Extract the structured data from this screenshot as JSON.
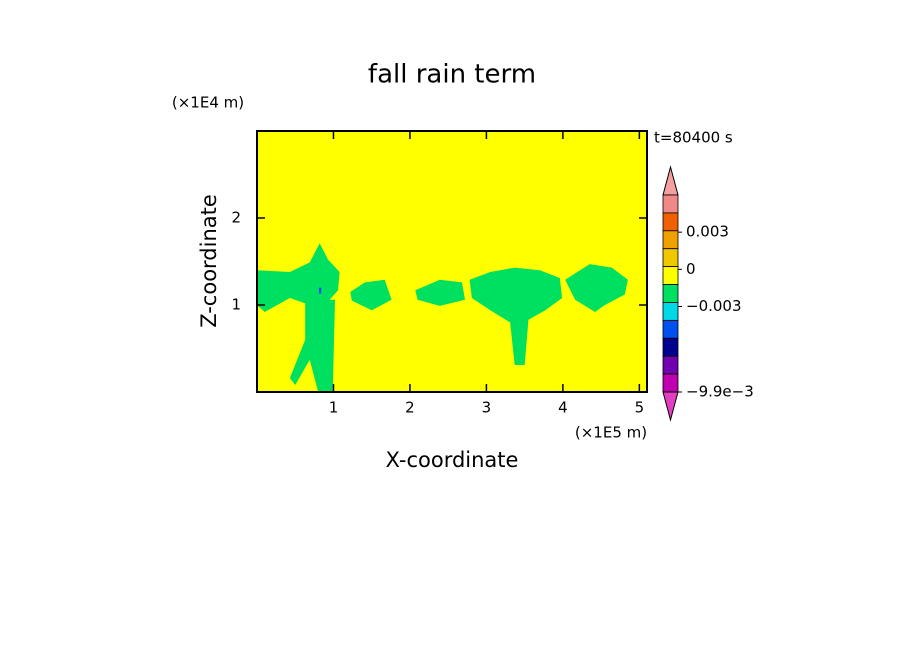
{
  "chart_data": {
    "type": "contour",
    "title": "fall rain term",
    "xlabel": "X-coordinate",
    "ylabel": "Z-coordinate",
    "xunit": "(×1E5 m)",
    "yunit": "(×1E4 m)",
    "time_label": "t=80400 s",
    "xlim": [
      0,
      5.1
    ],
    "ylim": [
      0,
      3
    ],
    "xticks": [
      1,
      2,
      3,
      4,
      5
    ],
    "yticks": [
      1,
      2
    ],
    "background_color": "#ffff00",
    "regions": [
      {
        "color": "#00e060",
        "x": [
          0,
          0.43,
          0.69,
          0.82,
          0.93,
          1.08,
          1.06,
          0.95,
          0.69,
          0.43,
          0.1,
          0
        ],
        "z": [
          1.4,
          1.38,
          1.49,
          1.71,
          1.52,
          1.38,
          1.17,
          1.06,
          1.0,
          1.08,
          0.92,
          1.0
        ]
      },
      {
        "color": "#00e060",
        "x": [
          0.63,
          1.02,
          0.99,
          0.8,
          0.69,
          0.5,
          0.43,
          0.63
        ],
        "z": [
          1.06,
          1.06,
          0,
          0,
          0.37,
          0.08,
          0.16,
          0.6
        ]
      },
      {
        "color": "#00e060",
        "x": [
          1.22,
          1.41,
          1.67,
          1.76,
          1.5,
          1.24
        ],
        "z": [
          1.15,
          1.26,
          1.29,
          1.06,
          0.94,
          1.05
        ]
      },
      {
        "color": "#00e060",
        "x": [
          2.07,
          2.39,
          2.68,
          2.72,
          2.39,
          2.1
        ],
        "z": [
          1.17,
          1.29,
          1.26,
          1.06,
          0.99,
          1.06
        ]
      },
      {
        "color": "#00e060",
        "x": [
          2.78,
          3.05,
          3.37,
          3.7,
          3.96,
          3.99,
          3.77,
          3.55,
          3.5,
          3.37,
          3.31,
          3.05,
          2.81
        ],
        "z": [
          1.29,
          1.38,
          1.43,
          1.4,
          1.31,
          1.08,
          0.94,
          0.83,
          0.31,
          0.31,
          0.8,
          0.94,
          1.08
        ]
      },
      {
        "color": "#00e060",
        "x": [
          4.03,
          4.35,
          4.64,
          4.85,
          4.81,
          4.55,
          4.42,
          4.16
        ],
        "z": [
          1.29,
          1.47,
          1.43,
          1.29,
          1.12,
          1.0,
          0.92,
          1.06
        ]
      },
      {
        "color": "#0050f0",
        "x": [
          0.81,
          0.84,
          0.84,
          0.81
        ],
        "z": [
          1.13,
          1.13,
          1.2,
          1.2
        ]
      }
    ],
    "colorbar": {
      "clim": [
        -0.0099,
        0.006
      ],
      "colors": [
        "#f08888",
        "#f06000",
        "#f0a000",
        "#f0c800",
        "#ffff00",
        "#00e060",
        "#00d8e8",
        "#0050f0",
        "#000090",
        "#7000b0",
        "#c000b0"
      ],
      "over_color": "#f4a0a0",
      "under_color": "#e040c0",
      "ticks": [
        {
          "value": 0.003,
          "label": "0.003"
        },
        0,
        {
          "value": -0.003,
          "label": "−0.003"
        },
        {
          "value": -0.0099,
          "label": "−9.9e−3"
        }
      ]
    }
  }
}
